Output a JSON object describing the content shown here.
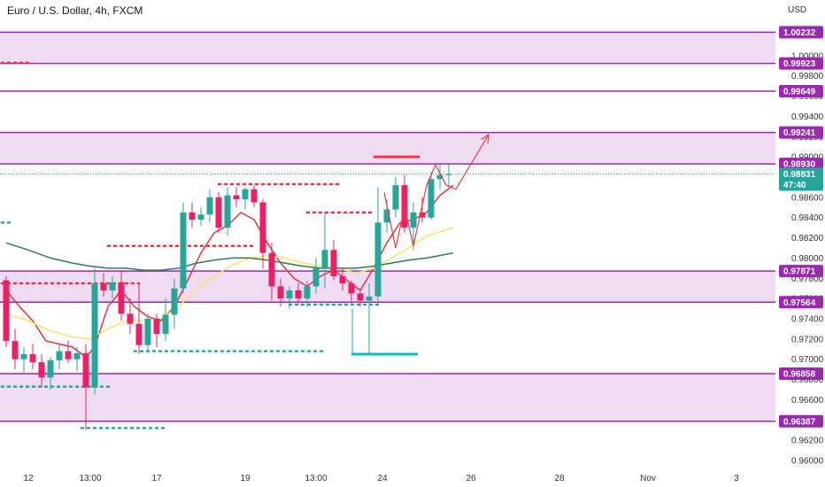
{
  "chart_data": {
    "type": "candlestick",
    "title": "Euro / U.S. Dollar, 4h, FXCM",
    "currency": "USD",
    "ylim": [
      0.96,
      1.0055
    ],
    "xlim": [
      0,
      83
    ],
    "y_ticks": [
      "1.00000",
      "0.99800",
      "0.99600",
      "0.99400",
      "0.99200",
      "0.99000",
      "0.98800",
      "0.98600",
      "0.98400",
      "0.98200",
      "0.98000",
      "0.97800",
      "0.97600",
      "0.97400",
      "0.97200",
      "0.97000",
      "0.96800",
      "0.96600",
      "0.96400",
      "0.96200",
      "0.96000"
    ],
    "y_tick_values": [
      1.0,
      0.998,
      0.996,
      0.994,
      0.992,
      0.99,
      0.988,
      0.986,
      0.984,
      0.982,
      0.98,
      0.978,
      0.976,
      0.974,
      0.972,
      0.97,
      0.968,
      0.966,
      0.964,
      0.962,
      0.96
    ],
    "x_ticks": [
      {
        "label": "12",
        "x": 3
      },
      {
        "label": "13:00",
        "x": 10
      },
      {
        "label": "17",
        "x": 17.5
      },
      {
        "label": "19",
        "x": 27.5
      },
      {
        "label": "13:00",
        "x": 35.5
      },
      {
        "label": "24",
        "x": 43
      },
      {
        "label": "26",
        "x": 53
      },
      {
        "label": "28",
        "x": 63
      },
      {
        "label": "Nov",
        "x": 73
      },
      {
        "label": "3",
        "x": 83
      }
    ],
    "zones": [
      {
        "low": 0.99923,
        "high": 1.00232
      },
      {
        "low": 0.9893,
        "high": 0.99241
      },
      {
        "low": 0.97564,
        "high": 0.97871
      },
      {
        "low": 0.96387,
        "high": 0.96858
      }
    ],
    "levels": [
      {
        "value": 1.00232,
        "label": "1.00232"
      },
      {
        "value": 0.99923,
        "label": "0.99923"
      },
      {
        "value": 0.99649,
        "label": "0.99649"
      },
      {
        "value": 0.99241,
        "label": "0.99241"
      },
      {
        "value": 0.9893,
        "label": "0.98930"
      },
      {
        "value": 0.97871,
        "label": "0.97871"
      },
      {
        "value": 0.97564,
        "label": "0.97564"
      },
      {
        "value": 0.96858,
        "label": "0.96858"
      },
      {
        "value": 0.96387,
        "label": "0.96387"
      }
    ],
    "current_price": {
      "value": 0.98831,
      "label": "0.98831",
      "countdown": "47:40"
    },
    "candles": [
      {
        "x": 0.5,
        "o": 0.9778,
        "h": 0.9782,
        "l": 0.9712,
        "c": 0.9718
      },
      {
        "x": 1.5,
        "o": 0.9718,
        "h": 0.973,
        "l": 0.969,
        "c": 0.97
      },
      {
        "x": 2.5,
        "o": 0.97,
        "h": 0.9712,
        "l": 0.9685,
        "c": 0.9705
      },
      {
        "x": 3.5,
        "o": 0.9705,
        "h": 0.9715,
        "l": 0.969,
        "c": 0.9697
      },
      {
        "x": 4.5,
        "o": 0.9697,
        "h": 0.9705,
        "l": 0.9672,
        "c": 0.9682
      },
      {
        "x": 5.5,
        "o": 0.9682,
        "h": 0.9702,
        "l": 0.967,
        "c": 0.9699
      },
      {
        "x": 6.5,
        "o": 0.9699,
        "h": 0.9715,
        "l": 0.969,
        "c": 0.9708
      },
      {
        "x": 7.5,
        "o": 0.9708,
        "h": 0.9718,
        "l": 0.9696,
        "c": 0.97
      },
      {
        "x": 8.5,
        "o": 0.97,
        "h": 0.9712,
        "l": 0.9688,
        "c": 0.9706
      },
      {
        "x": 9.5,
        "o": 0.9706,
        "h": 0.9715,
        "l": 0.963,
        "c": 0.9672
      },
      {
        "x": 10.5,
        "o": 0.9672,
        "h": 0.979,
        "l": 0.9665,
        "c": 0.9775
      },
      {
        "x": 11.5,
        "o": 0.9775,
        "h": 0.9785,
        "l": 0.9762,
        "c": 0.9768
      },
      {
        "x": 12.5,
        "o": 0.9768,
        "h": 0.9782,
        "l": 0.976,
        "c": 0.9776
      },
      {
        "x": 13.5,
        "o": 0.9776,
        "h": 0.9788,
        "l": 0.9738,
        "c": 0.9745
      },
      {
        "x": 14.5,
        "o": 0.9745,
        "h": 0.976,
        "l": 0.9725,
        "c": 0.9735
      },
      {
        "x": 15.5,
        "o": 0.9735,
        "h": 0.9775,
        "l": 0.9705,
        "c": 0.9714
      },
      {
        "x": 16.5,
        "o": 0.9714,
        "h": 0.9745,
        "l": 0.9708,
        "c": 0.974
      },
      {
        "x": 17.5,
        "o": 0.974,
        "h": 0.9745,
        "l": 0.9712,
        "c": 0.9725
      },
      {
        "x": 18.5,
        "o": 0.9725,
        "h": 0.976,
        "l": 0.9718,
        "c": 0.9744
      },
      {
        "x": 19.5,
        "o": 0.9744,
        "h": 0.978,
        "l": 0.973,
        "c": 0.977
      },
      {
        "x": 20.5,
        "o": 0.977,
        "h": 0.9855,
        "l": 0.9765,
        "c": 0.9845
      },
      {
        "x": 21.5,
        "o": 0.9845,
        "h": 0.9855,
        "l": 0.983,
        "c": 0.9838
      },
      {
        "x": 22.5,
        "o": 0.9838,
        "h": 0.985,
        "l": 0.9832,
        "c": 0.9843
      },
      {
        "x": 23.5,
        "o": 0.9843,
        "h": 0.9868,
        "l": 0.9835,
        "c": 0.986
      },
      {
        "x": 24.5,
        "o": 0.986,
        "h": 0.9865,
        "l": 0.9825,
        "c": 0.983
      },
      {
        "x": 25.5,
        "o": 0.983,
        "h": 0.987,
        "l": 0.9822,
        "c": 0.9862
      },
      {
        "x": 26.5,
        "o": 0.9862,
        "h": 0.987,
        "l": 0.985,
        "c": 0.9858
      },
      {
        "x": 27.5,
        "o": 0.9858,
        "h": 0.987,
        "l": 0.9848,
        "c": 0.9868
      },
      {
        "x": 28.5,
        "o": 0.9868,
        "h": 0.9872,
        "l": 0.985,
        "c": 0.9855
      },
      {
        "x": 29.5,
        "o": 0.9855,
        "h": 0.9858,
        "l": 0.979,
        "c": 0.9805
      },
      {
        "x": 30.5,
        "o": 0.9805,
        "h": 0.9815,
        "l": 0.9758,
        "c": 0.9772
      },
      {
        "x": 31.5,
        "o": 0.9772,
        "h": 0.978,
        "l": 0.9752,
        "c": 0.976
      },
      {
        "x": 32.5,
        "o": 0.976,
        "h": 0.9772,
        "l": 0.975,
        "c": 0.9768
      },
      {
        "x": 33.5,
        "o": 0.9768,
        "h": 0.9775,
        "l": 0.9755,
        "c": 0.976
      },
      {
        "x": 34.5,
        "o": 0.976,
        "h": 0.9778,
        "l": 0.9752,
        "c": 0.9772
      },
      {
        "x": 35.5,
        "o": 0.9772,
        "h": 0.98,
        "l": 0.9765,
        "c": 0.979
      },
      {
        "x": 36.5,
        "o": 0.979,
        "h": 0.9845,
        "l": 0.977,
        "c": 0.9808
      },
      {
        "x": 37.5,
        "o": 0.9808,
        "h": 0.9818,
        "l": 0.9778,
        "c": 0.9782
      },
      {
        "x": 38.5,
        "o": 0.9782,
        "h": 0.979,
        "l": 0.9768,
        "c": 0.9775
      },
      {
        "x": 39.5,
        "o": 0.9775,
        "h": 0.9778,
        "l": 0.9755,
        "c": 0.9765
      },
      {
        "x": 40.5,
        "o": 0.9765,
        "h": 0.977,
        "l": 0.9752,
        "c": 0.9758
      },
      {
        "x": 41.5,
        "o": 0.9758,
        "h": 0.9775,
        "l": 0.9705,
        "c": 0.9762
      },
      {
        "x": 42.5,
        "o": 0.9762,
        "h": 0.987,
        "l": 0.9755,
        "c": 0.9835
      },
      {
        "x": 43.5,
        "o": 0.9835,
        "h": 0.9858,
        "l": 0.9825,
        "c": 0.9848
      },
      {
        "x": 44.5,
        "o": 0.9848,
        "h": 0.988,
        "l": 0.984,
        "c": 0.9872
      },
      {
        "x": 45.5,
        "o": 0.9872,
        "h": 0.9882,
        "l": 0.9825,
        "c": 0.983
      },
      {
        "x": 46.5,
        "o": 0.983,
        "h": 0.9855,
        "l": 0.9808,
        "c": 0.9845
      },
      {
        "x": 47.5,
        "o": 0.9845,
        "h": 0.986,
        "l": 0.9835,
        "c": 0.984
      },
      {
        "x": 48.5,
        "o": 0.984,
        "h": 0.9885,
        "l": 0.9838,
        "c": 0.9878
      },
      {
        "x": 49.5,
        "o": 0.9878,
        "h": 0.9892,
        "l": 0.9868,
        "c": 0.9882
      },
      {
        "x": 50.5,
        "o": 0.9882,
        "h": 0.9893,
        "l": 0.987,
        "c": 0.98831
      }
    ],
    "series": [
      {
        "color": "#e8323c",
        "values": [
          [
            0.5,
            0.9768
          ],
          [
            2,
            0.9752
          ],
          [
            3.5,
            0.9738
          ],
          [
            5,
            0.9718
          ],
          [
            6.5,
            0.9715
          ],
          [
            8,
            0.9712
          ],
          [
            9.5,
            0.9702
          ],
          [
            10.5,
            0.9712
          ],
          [
            12,
            0.9752
          ],
          [
            13.5,
            0.9768
          ],
          [
            15,
            0.9752
          ],
          [
            16.5,
            0.9742
          ],
          [
            18,
            0.9738
          ],
          [
            19.5,
            0.9752
          ],
          [
            21,
            0.9778
          ],
          [
            22.5,
            0.9805
          ],
          [
            24,
            0.9825
          ],
          [
            25.5,
            0.9832
          ],
          [
            27,
            0.9845
          ],
          [
            28.5,
            0.9838
          ],
          [
            30,
            0.9815
          ],
          [
            31.5,
            0.9795
          ],
          [
            33,
            0.978
          ],
          [
            34.5,
            0.9772
          ],
          [
            36,
            0.9782
          ],
          [
            37.5,
            0.9788
          ],
          [
            39,
            0.9778
          ],
          [
            40.5,
            0.9768
          ],
          [
            42,
            0.979
          ],
          [
            43.5,
            0.9815
          ],
          [
            45,
            0.9835
          ],
          [
            46.5,
            0.9838
          ],
          [
            48,
            0.9845
          ],
          [
            49.5,
            0.9862
          ],
          [
            51,
            0.9872
          ]
        ]
      },
      {
        "color": "#f5e663",
        "values": [
          [
            0.5,
            0.9745
          ],
          [
            3,
            0.9738
          ],
          [
            5.5,
            0.9728
          ],
          [
            8,
            0.9722
          ],
          [
            10,
            0.972
          ],
          [
            12,
            0.973
          ],
          [
            14,
            0.9738
          ],
          [
            16,
            0.9738
          ],
          [
            18,
            0.974
          ],
          [
            20,
            0.9752
          ],
          [
            22,
            0.977
          ],
          [
            24,
            0.9782
          ],
          [
            26,
            0.9793
          ],
          [
            28,
            0.98
          ],
          [
            30,
            0.9802
          ],
          [
            32,
            0.98
          ],
          [
            34,
            0.9795
          ],
          [
            36,
            0.9792
          ],
          [
            38,
            0.979
          ],
          [
            40,
            0.9785
          ],
          [
            42,
            0.979
          ],
          [
            44,
            0.98
          ],
          [
            46,
            0.981
          ],
          [
            48,
            0.9822
          ],
          [
            51,
            0.983
          ]
        ]
      },
      {
        "color": "#2e7d4f",
        "values": [
          [
            0.5,
            0.9815
          ],
          [
            3,
            0.9808
          ],
          [
            5.5,
            0.98
          ],
          [
            8,
            0.9795
          ],
          [
            10,
            0.9792
          ],
          [
            12,
            0.979
          ],
          [
            14,
            0.979
          ],
          [
            16,
            0.9788
          ],
          [
            18,
            0.9788
          ],
          [
            20,
            0.979
          ],
          [
            22,
            0.9795
          ],
          [
            24,
            0.9798
          ],
          [
            26,
            0.98
          ],
          [
            28,
            0.98
          ],
          [
            30,
            0.9798
          ],
          [
            32,
            0.9795
          ],
          [
            34,
            0.9792
          ],
          [
            36,
            0.979
          ],
          [
            38,
            0.979
          ],
          [
            40,
            0.979
          ],
          [
            42,
            0.9792
          ],
          [
            44,
            0.9795
          ],
          [
            46,
            0.9798
          ],
          [
            48,
            0.98
          ],
          [
            51,
            0.9805
          ]
        ]
      }
    ],
    "dotted_lines": [
      {
        "color": "#e8323c",
        "y": 0.9993,
        "x1": 0,
        "x2": 3.2
      },
      {
        "color": "#e8323c",
        "y": 0.9775,
        "x1": 0,
        "x2": 15.5
      },
      {
        "color": "#e8323c",
        "y": 0.9812,
        "x1": 12,
        "x2": 28.5
      },
      {
        "color": "#e8323c",
        "y": 0.9873,
        "x1": 24.5,
        "x2": 38.5
      },
      {
        "color": "#e8323c",
        "y": 0.9845,
        "x1": 34.5,
        "x2": 42
      },
      {
        "color": "#26a69a",
        "y": 0.9835,
        "x1": 0,
        "x2": 1
      },
      {
        "color": "#26a69a",
        "y": 0.9673,
        "x1": 0,
        "x2": 12.5
      },
      {
        "color": "#26a69a",
        "y": 0.9708,
        "x1": 15,
        "x2": 36.5
      },
      {
        "color": "#26a69a",
        "y": 0.9754,
        "x1": 32.5,
        "x2": 43
      },
      {
        "color": "#26a69a",
        "y": 0.9632,
        "x1": 9,
        "x2": 18.5
      }
    ],
    "annotations": {
      "red_top_line": {
        "y": 0.99,
        "x1": 42,
        "x2": 47.2
      },
      "cyan_bottom_line": {
        "y": 0.9705,
        "x1": 39.5,
        "x2": 47
      },
      "cyan_vertical": {
        "x": 39.6,
        "y1": 0.975,
        "y2": 0.9705
      },
      "zigzag": [
        [
          43.2,
          0.9865
        ],
        [
          44.5,
          0.981
        ],
        [
          45.5,
          0.985
        ],
        [
          46.5,
          0.9812
        ],
        [
          48,
          0.9872
        ],
        [
          49,
          0.9892
        ],
        [
          50.2,
          0.9872
        ],
        [
          51.3,
          0.9868
        ]
      ],
      "arrow": [
        [
          51.3,
          0.9868
        ],
        [
          55,
          0.9922
        ]
      ]
    }
  }
}
